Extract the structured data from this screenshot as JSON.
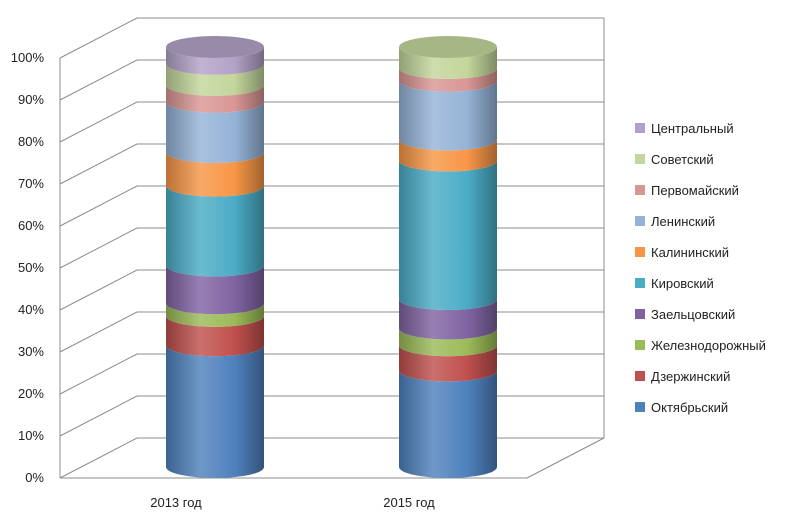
{
  "chart_data": {
    "type": "bar",
    "style": "3d-stacked-percent-cylinder",
    "title": "",
    "xlabel": "",
    "ylabel": "",
    "categories": [
      "2013 год",
      "2015 год"
    ],
    "ylim": [
      0,
      100
    ],
    "yticks": [
      "0%",
      "10%",
      "20%",
      "30%",
      "40%",
      "50%",
      "60%",
      "70%",
      "80%",
      "90%",
      "100%"
    ],
    "grid": true,
    "legend_position": "right",
    "series": [
      {
        "name": "Октябрьский",
        "color": "#4f81bd",
        "values": [
          29,
          23
        ]
      },
      {
        "name": "Дзержинский",
        "color": "#c0504d",
        "values": [
          7,
          6
        ]
      },
      {
        "name": "Железнодорожный",
        "color": "#9bbb59",
        "values": [
          3,
          4
        ]
      },
      {
        "name": "Заельцовский",
        "color": "#8064a2",
        "values": [
          9,
          7
        ]
      },
      {
        "name": "Кировский",
        "color": "#4bacc6",
        "values": [
          19,
          33
        ]
      },
      {
        "name": "Калининский",
        "color": "#f79646",
        "values": [
          8,
          5
        ]
      },
      {
        "name": "Ленинский",
        "color": "#95b3d7",
        "values": [
          12,
          14
        ]
      },
      {
        "name": "Первомайский",
        "color": "#d99694",
        "values": [
          4,
          3
        ]
      },
      {
        "name": "Советский",
        "color": "#c3d69b",
        "values": [
          5,
          5
        ]
      },
      {
        "name": "Центральный",
        "color": "#b3a2c7",
        "values": [
          4,
          0
        ]
      }
    ]
  }
}
